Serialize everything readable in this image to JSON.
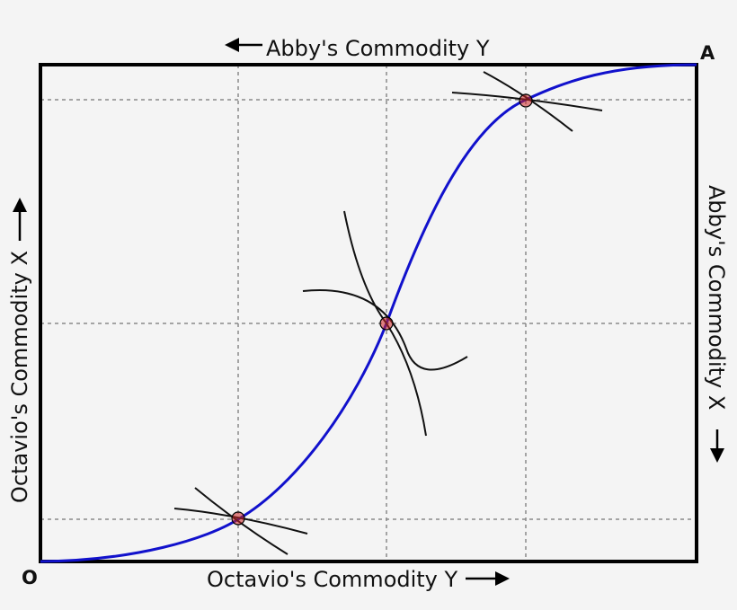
{
  "labels": {
    "top": "Abby's Commodity Y",
    "bottom": "Octavio's Commodity Y",
    "left": "Octavio's Commodity X",
    "right": "Abby's Commodity X",
    "origin_octavio": "O",
    "origin_abby": "A"
  },
  "colors": {
    "background": "#f4f4f4",
    "box": "#000000",
    "contract_curve": "#1111cc",
    "indifference_curve": "#111111",
    "grid": "#8a8a8a",
    "point_fill": "#cc2222"
  },
  "icons": [
    "arrow-left-icon",
    "arrow-right-icon",
    "arrow-up-icon",
    "arrow-down-icon"
  ],
  "tangency_points": 3
}
